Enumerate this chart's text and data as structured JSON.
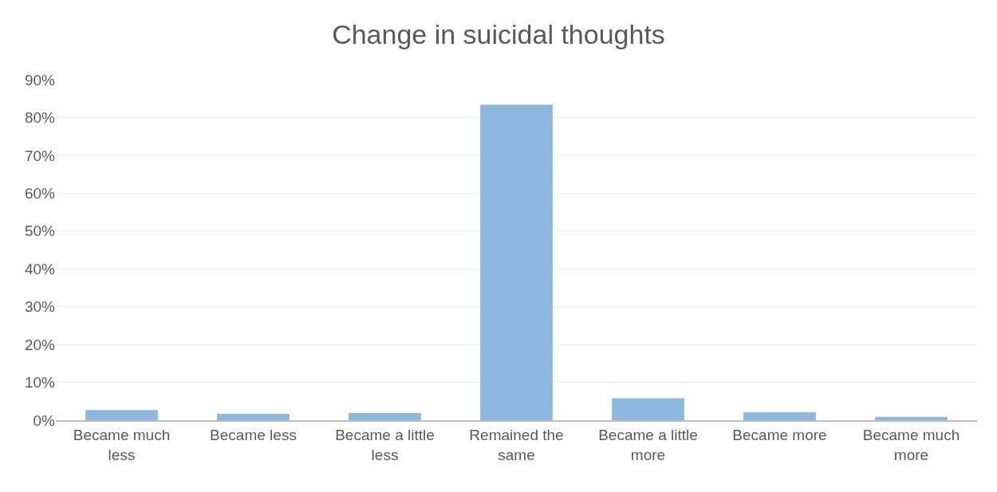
{
  "chart_data": {
    "type": "bar",
    "title": "Change in suicidal thoughts",
    "categories": [
      "Became much less",
      "Became less",
      "Became a little less",
      "Remained the same",
      "Became a little more",
      "Became more",
      "Became much more"
    ],
    "values": [
      2.7,
      1.7,
      1.9,
      83.4,
      5.8,
      2.1,
      0.9
    ],
    "color": "#8cb8e0",
    "ylim": [
      0,
      90
    ],
    "yticks": [
      {
        "value": 0,
        "label": "0%"
      },
      {
        "value": 10,
        "label": "10%"
      },
      {
        "value": 20,
        "label": "20%"
      },
      {
        "value": 30,
        "label": "30%"
      },
      {
        "value": 40,
        "label": "40%"
      },
      {
        "value": 50,
        "label": "50%"
      },
      {
        "value": 60,
        "label": "60%"
      },
      {
        "value": 70,
        "label": "70%"
      },
      {
        "value": 80,
        "label": "80%"
      },
      {
        "value": 90,
        "label": "90%"
      }
    ],
    "grid": "y"
  }
}
